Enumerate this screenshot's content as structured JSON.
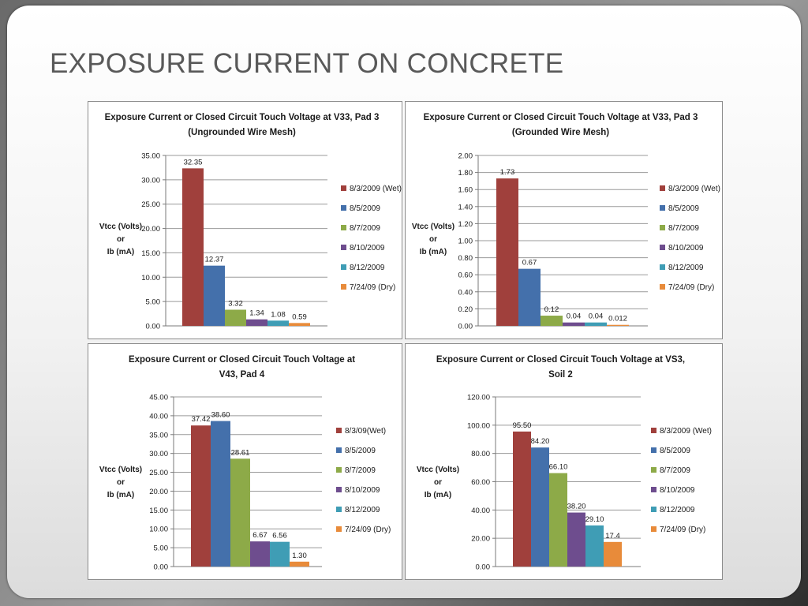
{
  "slide": {
    "title": "EXPOSURE CURRENT ON CONCRETE"
  },
  "colors": [
    "#A0403C",
    "#4470AB",
    "#8DAA48",
    "#6E4D8E",
    "#3F9DB5",
    "#E88B3A"
  ],
  "chart_data": [
    {
      "type": "bar",
      "title": [
        "Exposure Current or Closed Circuit Touch Voltage at V33, Pad 3",
        "(Ungrounded Wire Mesh)"
      ],
      "ylabel": [
        "Vtcc (Volts)",
        "or",
        "Ib (mA)"
      ],
      "ylim": [
        0,
        35
      ],
      "yticks": [
        "0.00",
        "5.00",
        "10.00",
        "15.00",
        "20.00",
        "25.00",
        "30.00",
        "35.00"
      ],
      "grid": true,
      "legend_position": "right",
      "series": [
        {
          "name": "8/3/2009 (Wet)",
          "value": 32.35,
          "label": "32.35"
        },
        {
          "name": "8/5/2009",
          "value": 12.37,
          "label": "12.37"
        },
        {
          "name": "8/7/2009",
          "value": 3.32,
          "label": "3.32"
        },
        {
          "name": "8/10/2009",
          "value": 1.34,
          "label": "1.34"
        },
        {
          "name": "8/12/2009",
          "value": 1.08,
          "label": "1.08"
        },
        {
          "name": "7/24/09 (Dry)",
          "value": 0.59,
          "label": "0.59"
        }
      ]
    },
    {
      "type": "bar",
      "title": [
        "Exposure Current or Closed Circuit Touch Voltage at V33, Pad 3",
        "(Grounded Wire Mesh)"
      ],
      "ylabel": [
        "Vtcc (Volts)",
        "or",
        "Ib (mA)"
      ],
      "ylim": [
        0,
        2
      ],
      "yticks": [
        "0.00",
        "0.20",
        "0.40",
        "0.60",
        "0.80",
        "1.00",
        "1.20",
        "1.40",
        "1.60",
        "1.80",
        "2.00"
      ],
      "grid": true,
      "legend_position": "right",
      "series": [
        {
          "name": "8/3/2009 (Wet)",
          "value": 1.73,
          "label": "1.73"
        },
        {
          "name": "8/5/2009",
          "value": 0.67,
          "label": "0.67"
        },
        {
          "name": "8/7/2009",
          "value": 0.12,
          "label": "0.12"
        },
        {
          "name": "8/10/2009",
          "value": 0.04,
          "label": "0.04"
        },
        {
          "name": "8/12/2009",
          "value": 0.04,
          "label": "0.04"
        },
        {
          "name": "7/24/09 (Dry)",
          "value": 0.012,
          "label": "0.012"
        }
      ]
    },
    {
      "type": "bar",
      "title": [
        "Exposure Current  or Closed Circuit Touch Voltage at",
        "V43, Pad 4"
      ],
      "ylabel": [
        "Vtcc (Volts)",
        "or",
        "Ib (mA)"
      ],
      "ylim": [
        0,
        45
      ],
      "yticks": [
        "0.00",
        "5.00",
        "10.00",
        "15.00",
        "20.00",
        "25.00",
        "30.00",
        "35.00",
        "40.00",
        "45.00"
      ],
      "grid": true,
      "legend_position": "right",
      "series": [
        {
          "name": "8/3/09(Wet)",
          "value": 37.42,
          "label": "37.42"
        },
        {
          "name": "8/5/2009",
          "value": 38.6,
          "label": "38.60"
        },
        {
          "name": "8/7/2009",
          "value": 28.61,
          "label": "28.61"
        },
        {
          "name": "8/10/2009",
          "value": 6.67,
          "label": "6.67"
        },
        {
          "name": "8/12/2009",
          "value": 6.56,
          "label": "6.56"
        },
        {
          "name": "7/24/09 (Dry)",
          "value": 1.3,
          "label": "1.30"
        }
      ]
    },
    {
      "type": "bar",
      "title": [
        "Exposure Current or Closed Circuit Touch Voltage at VS3,",
        "Soil 2"
      ],
      "ylabel": [
        "Vtcc (Volts)",
        "or",
        "Ib (mA)"
      ],
      "ylim": [
        0,
        120
      ],
      "yticks": [
        "0.00",
        "20.00",
        "40.00",
        "60.00",
        "80.00",
        "100.00",
        "120.00"
      ],
      "grid": true,
      "legend_position": "right",
      "series": [
        {
          "name": "8/3/2009 (Wet)",
          "value": 95.5,
          "label": "95.50"
        },
        {
          "name": "8/5/2009",
          "value": 84.2,
          "label": "84.20"
        },
        {
          "name": "8/7/2009",
          "value": 66.1,
          "label": "66.10"
        },
        {
          "name": "8/10/2009",
          "value": 38.2,
          "label": "38.20"
        },
        {
          "name": "8/12/2009",
          "value": 29.1,
          "label": "29.10"
        },
        {
          "name": "7/24/09 (Dry)",
          "value": 17.4,
          "label": "17.4"
        }
      ]
    }
  ]
}
